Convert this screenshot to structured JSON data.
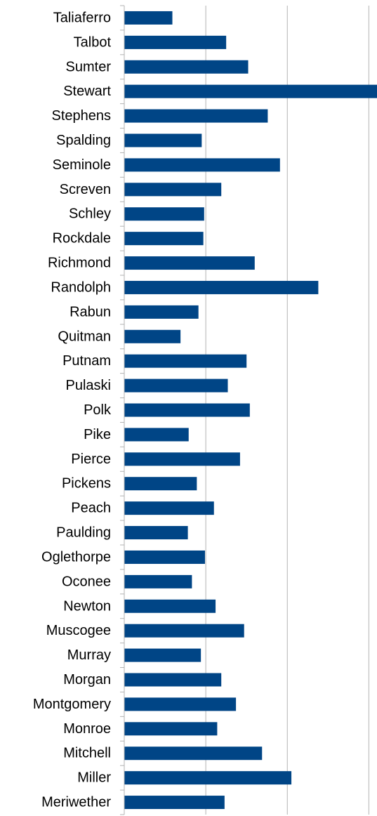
{
  "chart_data": {
    "type": "bar",
    "orientation": "horizontal",
    "title": "",
    "xlabel": "",
    "ylabel": "",
    "xlim": [
      0,
      3.1
    ],
    "grid": true,
    "legend": "none",
    "bar_color": "#004586",
    "grid_color": "#b3b3b3",
    "categories": [
      "Taliaferro",
      "Talbot",
      "Sumter",
      "Stewart",
      "Stephens",
      "Spalding",
      "Seminole",
      "Screven",
      "Schley",
      "Rockdale",
      "Richmond",
      "Randolph",
      "Rabun",
      "Quitman",
      "Putnam",
      "Pulaski",
      "Polk",
      "Pike",
      "Pierce",
      "Pickens",
      "Peach",
      "Paulding",
      "Oglethorpe",
      "Oconee",
      "Newton",
      "Muscogee",
      "Murray",
      "Morgan",
      "Montgomery",
      "Monroe",
      "Mitchell",
      "Miller",
      "Meriwether"
    ],
    "values": [
      0.59,
      1.25,
      1.52,
      3.1,
      1.76,
      0.95,
      1.91,
      1.19,
      0.98,
      0.97,
      1.6,
      2.38,
      0.91,
      0.69,
      1.5,
      1.27,
      1.54,
      0.79,
      1.42,
      0.89,
      1.1,
      0.78,
      0.99,
      0.83,
      1.12,
      1.47,
      0.94,
      1.19,
      1.37,
      1.14,
      1.69,
      2.05,
      1.23
    ]
  }
}
